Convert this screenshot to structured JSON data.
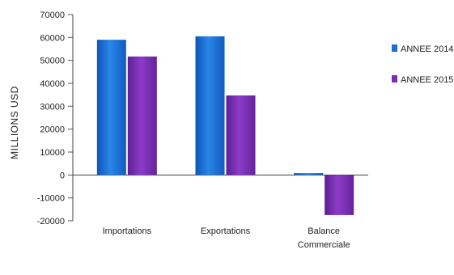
{
  "chart_data": {
    "type": "bar",
    "title": "",
    "xlabel": "",
    "ylabel": "MILLIONS USD",
    "categories": [
      "Importations",
      "Exportations",
      "Balance Commerciale"
    ],
    "series": [
      {
        "name": "ANNEE 2014",
        "values": [
          59000,
          60500,
          800
        ],
        "color": "#1f6fd0"
      },
      {
        "name": "ANNEE 2015",
        "values": [
          51700,
          34700,
          -17500
        ],
        "color": "#7a2fb0"
      }
    ],
    "ylim": [
      -20000,
      70000
    ],
    "yticks": [
      -20000,
      -10000,
      0,
      10000,
      20000,
      30000,
      40000,
      50000,
      60000,
      70000
    ],
    "ytick_labels": [
      "-20000",
      "-10000",
      "0",
      "10000",
      "20000",
      "30000",
      "40000",
      "50000",
      "60000",
      "70000"
    ],
    "grid": false,
    "legend_position": "right"
  }
}
